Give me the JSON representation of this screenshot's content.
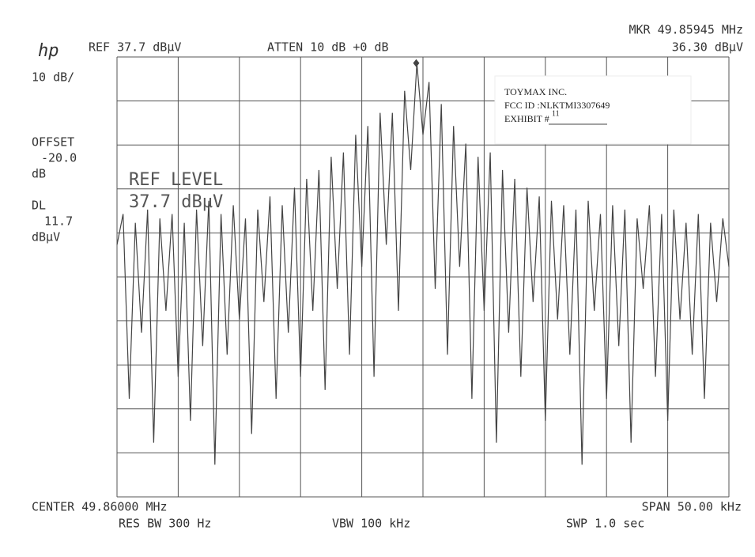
{
  "chart_data": {
    "type": "line",
    "logo": "hp",
    "ref_text": "REF 37.7 dBµV",
    "atten_text": "ATTEN 10 dB +0 dB",
    "mkr_freq_text": "MKR 49.85945 MHz",
    "mkr_level_text": "36.30 dBµV",
    "scale_text": "10 dB/",
    "offset_label": "OFFSET",
    "offset_value": "-20.0",
    "offset_unit": "dB",
    "dl_label": "DL",
    "dl_value": "11.7",
    "dl_unit": "dBµV",
    "ref_level_label": "REF LEVEL",
    "ref_level_value": "37.7 dBµV",
    "center_text": "CENTER 49.86000 MHz",
    "span_text": "SPAN 50.00 kHz",
    "rbw_text": "RES BW 300 Hz",
    "vbw_text": "VBW 100 kHz",
    "swp_text": "SWP 1.0 sec",
    "stamp": {
      "company": "TOYMAX INC.",
      "fcc_id": "FCC ID :NLKTMI3307649",
      "exhibit_label": "EXHIBIT #",
      "exhibit_number": "11"
    },
    "marker": {
      "x": 49.85945,
      "y": 36.3
    },
    "color": "#444444",
    "xlim": [
      49.835,
      49.885
    ],
    "ylim": [
      -62.3,
      37.7
    ],
    "x": [
      49.835,
      49.8355,
      49.836,
      49.8365,
      49.837,
      49.8375,
      49.838,
      49.8385,
      49.839,
      49.8395,
      49.84,
      49.8405,
      49.841,
      49.8415,
      49.842,
      49.8425,
      49.843,
      49.8435,
      49.844,
      49.8445,
      49.845,
      49.8455,
      49.846,
      49.8465,
      49.847,
      49.8475,
      49.848,
      49.8485,
      49.849,
      49.8495,
      49.85,
      49.8505,
      49.851,
      49.8515,
      49.852,
      49.8525,
      49.853,
      49.8535,
      49.854,
      49.8545,
      49.855,
      49.8555,
      49.856,
      49.8565,
      49.857,
      49.8575,
      49.858,
      49.8585,
      49.859,
      49.8595,
      49.86,
      49.8605,
      49.861,
      49.8615,
      49.862,
      49.8625,
      49.863,
      49.8635,
      49.864,
      49.8645,
      49.865,
      49.8655,
      49.866,
      49.8665,
      49.867,
      49.8675,
      49.868,
      49.8685,
      49.869,
      49.8695,
      49.87,
      49.8705,
      49.871,
      49.8715,
      49.872,
      49.8725,
      49.873,
      49.8735,
      49.874,
      49.8745,
      49.875,
      49.8755,
      49.876,
      49.8765,
      49.877,
      49.8775,
      49.878,
      49.8785,
      49.879,
      49.8795,
      49.88,
      49.8805,
      49.881,
      49.8815,
      49.882,
      49.8825,
      49.883,
      49.8835,
      49.884,
      49.8845,
      49.885
    ],
    "values": [
      -5,
      2,
      -40,
      0,
      -25,
      3,
      -50,
      1,
      -20,
      2,
      -35,
      0,
      -45,
      3,
      -28,
      5,
      -55,
      2,
      -30,
      4,
      -22,
      1,
      -48,
      3,
      -18,
      6,
      -40,
      4,
      -25,
      8,
      -35,
      10,
      -20,
      12,
      -38,
      15,
      -15,
      16,
      -30,
      20,
      -10,
      22,
      -35,
      25,
      -5,
      25,
      -20,
      30,
      12,
      36.3,
      20,
      32,
      -15,
      27,
      -30,
      22,
      -10,
      18,
      -40,
      15,
      -20,
      16,
      -50,
      12,
      -25,
      10,
      -35,
      8,
      -18,
      6,
      -45,
      5,
      -22,
      4,
      -30,
      3,
      -55,
      5,
      -20,
      2,
      -40,
      4,
      -28,
      3,
      -50,
      1,
      -15,
      4,
      -35,
      2,
      -45,
      3,
      -22,
      0,
      -30,
      2,
      -40,
      0,
      -18,
      1,
      -10
    ]
  }
}
